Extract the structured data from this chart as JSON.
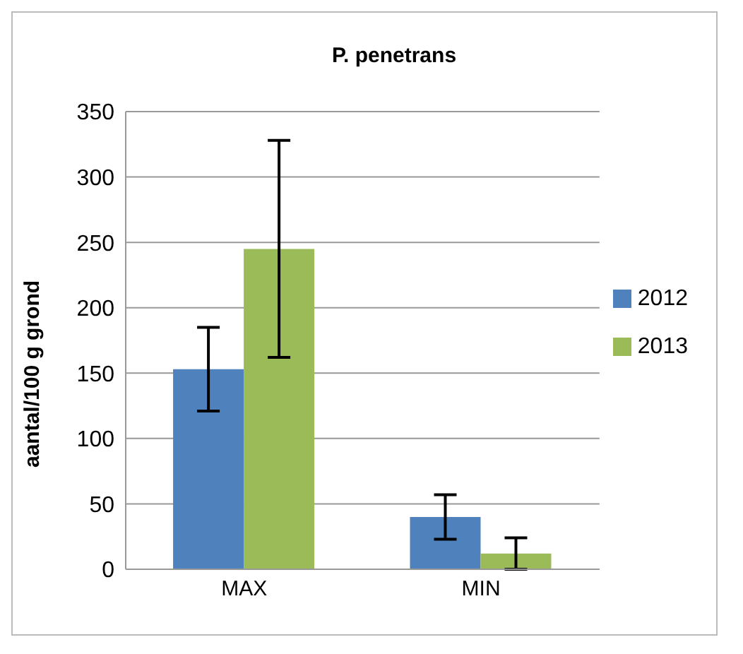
{
  "chart_data": {
    "type": "bar",
    "title": "P. penetrans",
    "ylabel": "aantal/100 g grond",
    "categories": [
      "MAX",
      "MIN"
    ],
    "series": [
      {
        "name": "2012",
        "color": "#4f81bd",
        "values": [
          153,
          40
        ],
        "errors": [
          32,
          17
        ]
      },
      {
        "name": "2013",
        "color": "#9bbb59",
        "values": [
          245,
          12
        ],
        "errors": [
          83,
          12
        ]
      }
    ],
    "ylim": [
      0,
      350
    ],
    "yticks": [
      0,
      50,
      100,
      150,
      200,
      250,
      300,
      350
    ],
    "grid": "y",
    "legend": "right"
  }
}
